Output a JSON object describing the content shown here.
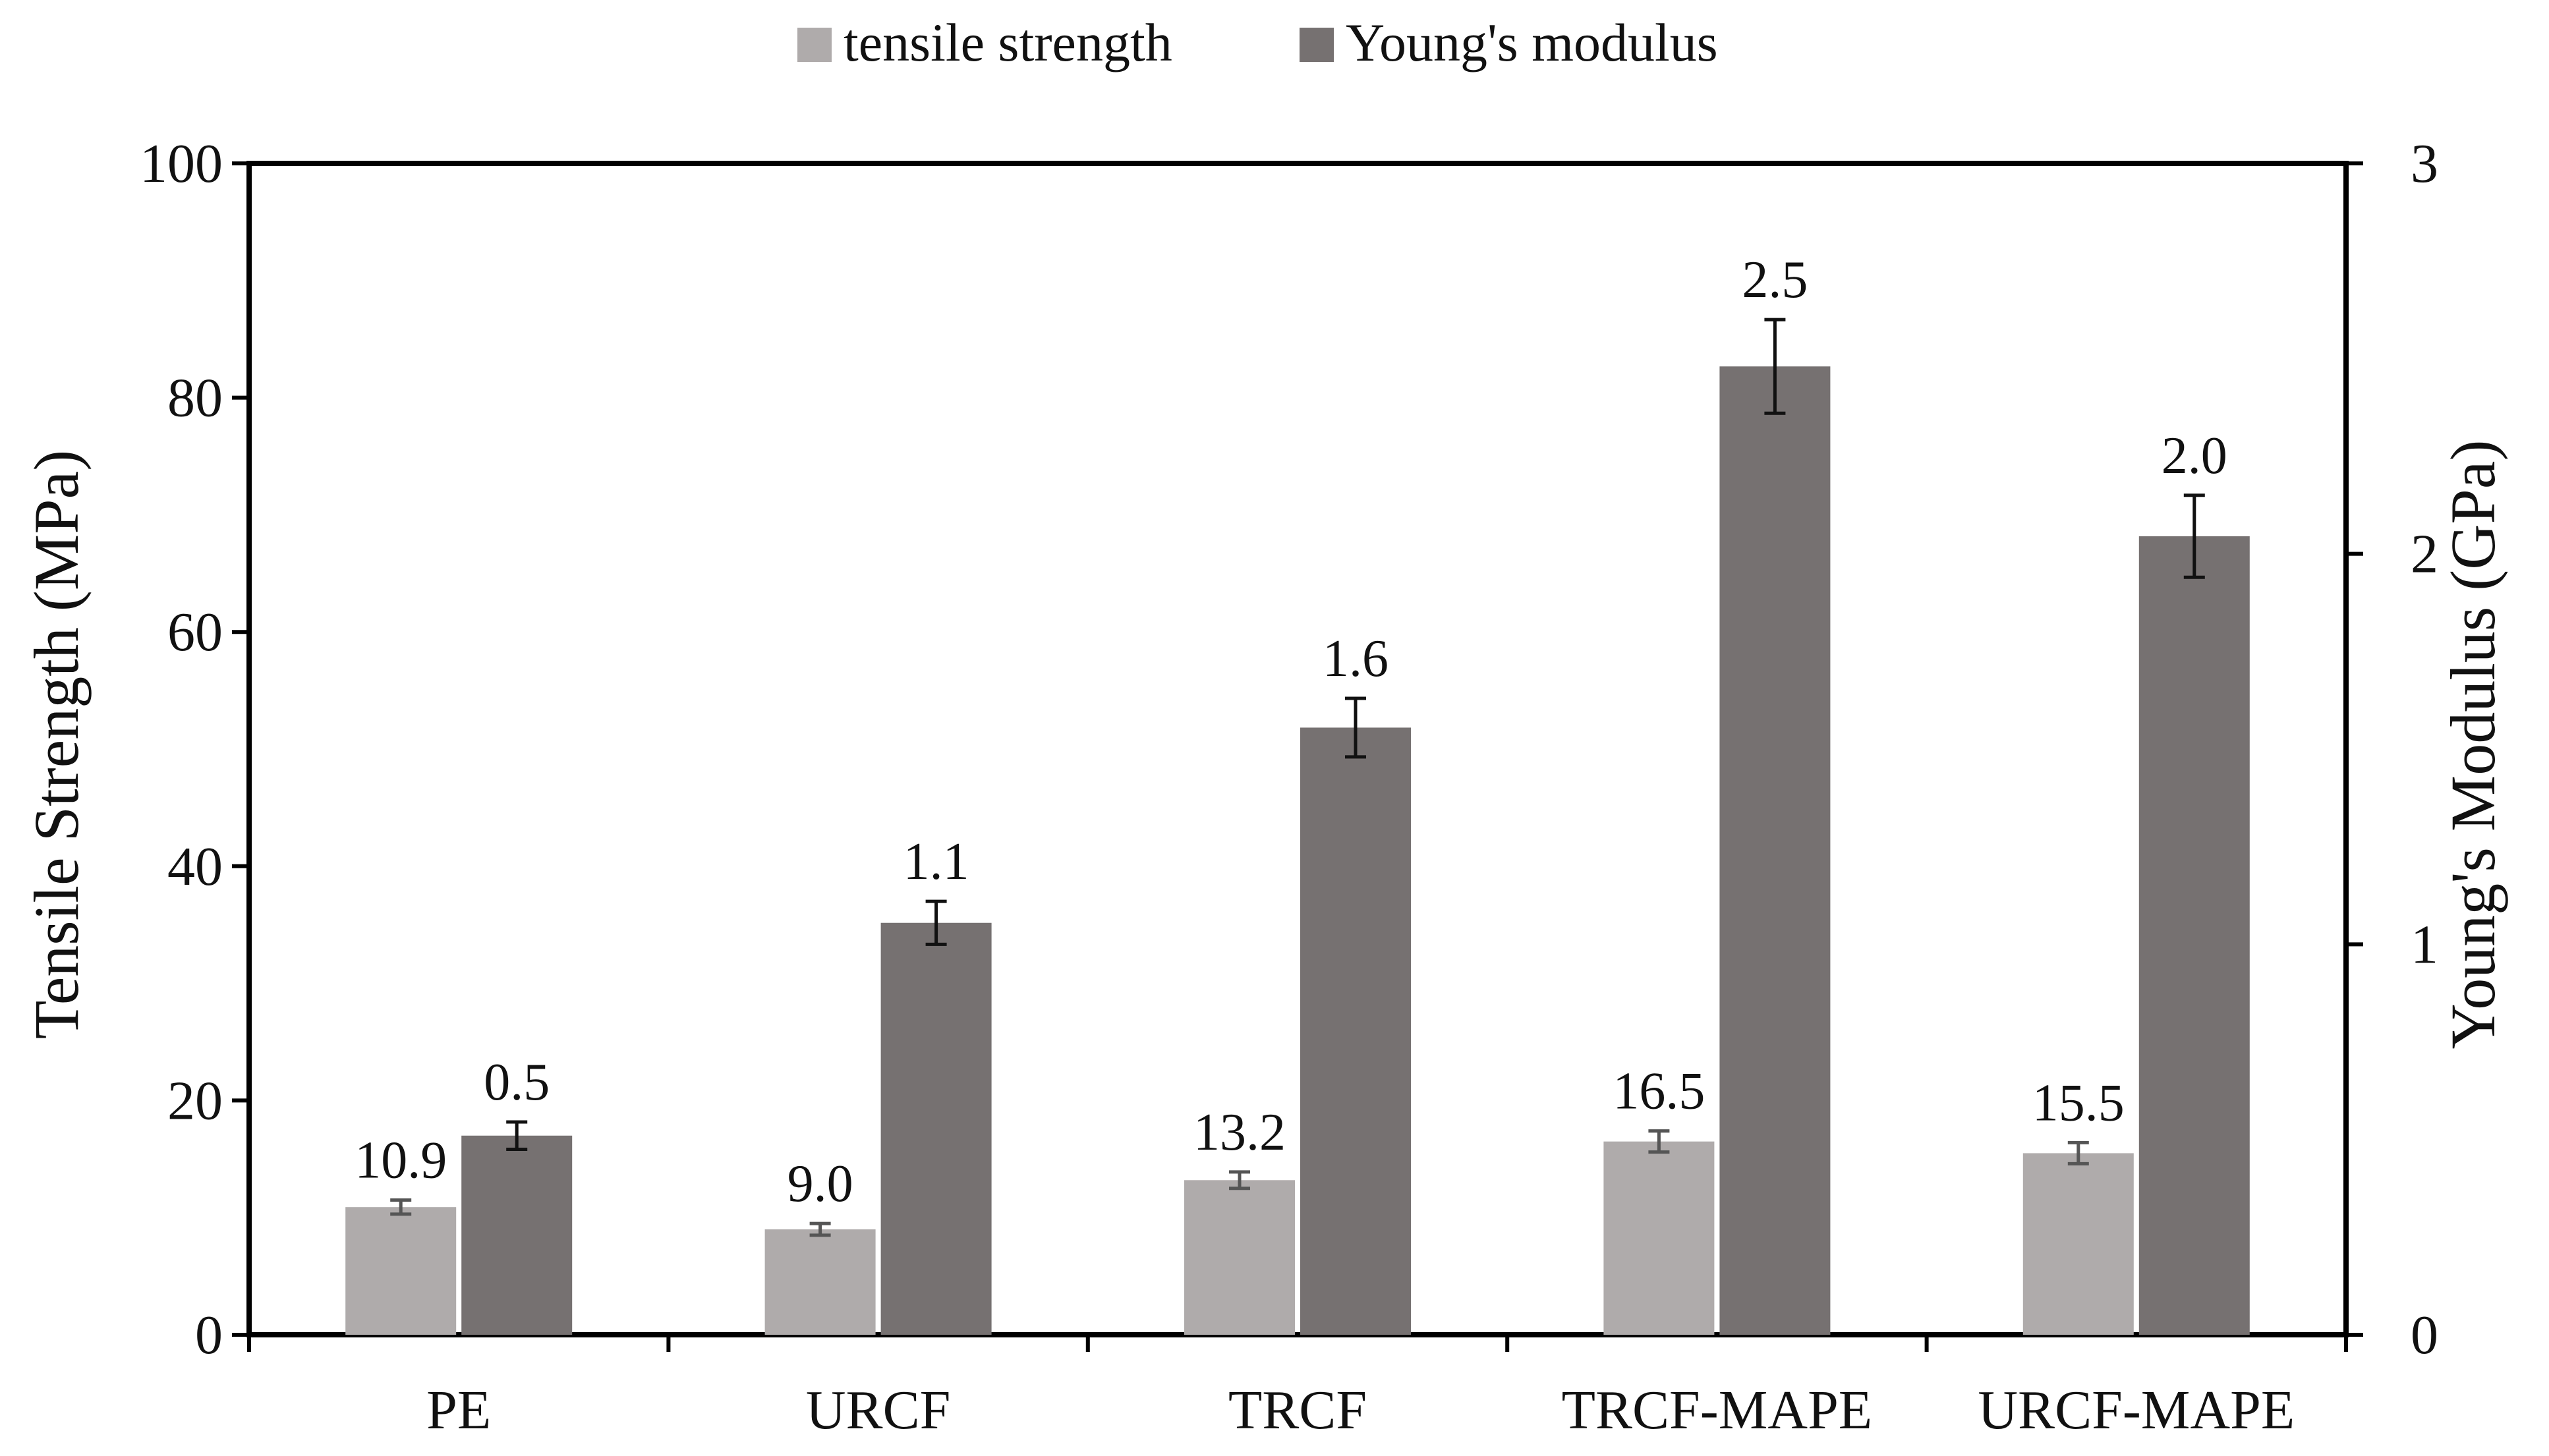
{
  "chart_data": {
    "type": "bar",
    "categories": [
      "PE",
      "URCF",
      "TRCF",
      "TRCF-MAPE",
      "URCF-MAPE"
    ],
    "series": [
      {
        "name": "tensile strength",
        "axis": "left",
        "color": "#afabab",
        "values": [
          10.9,
          9.0,
          13.2,
          16.5,
          15.5
        ],
        "errors": [
          0.6,
          0.5,
          0.7,
          0.9,
          0.9
        ],
        "labels": [
          "10.9",
          "9.0",
          "13.2",
          "16.5",
          "15.5"
        ]
      },
      {
        "name": "Young's modulus",
        "axis": "right",
        "color": "#767171",
        "values": [
          0.51,
          1.055,
          1.555,
          2.48,
          2.045
        ],
        "errors": [
          0.035,
          0.055,
          0.075,
          0.12,
          0.105
        ],
        "labels": [
          "0.5",
          "1.1",
          "1.6",
          "2.5",
          "2.0"
        ]
      }
    ],
    "ylabel": "Tensile Strength (MPa)",
    "y2label": "Young's Modulus (GPa)",
    "ylim": [
      0,
      100
    ],
    "y2lim": [
      0,
      3
    ],
    "yticks": [
      "0",
      "20",
      "40",
      "60",
      "80",
      "100"
    ],
    "y2ticks": [
      "0",
      "1",
      "2",
      "3"
    ],
    "grid": false,
    "legend_position": "top-center"
  }
}
